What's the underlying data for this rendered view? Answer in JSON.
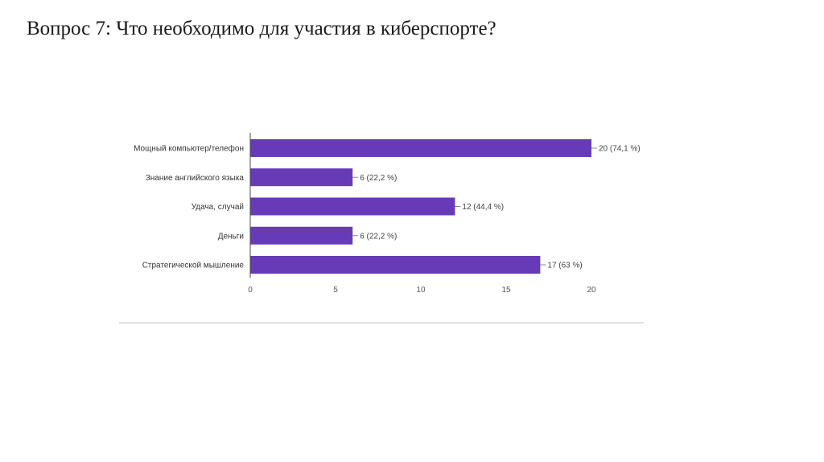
{
  "slide": {
    "title": "Вопрос 7: Что необходимо для участия в киберспорте?"
  },
  "chart_data": {
    "type": "bar",
    "orientation": "horizontal",
    "categories": [
      "Мощный компьютер/телефон",
      "Знание английского языка",
      "Удача, случай",
      "Деньги",
      "Стратегической мышление"
    ],
    "values": [
      20,
      6,
      12,
      6,
      17
    ],
    "data_labels": [
      "20 (74,1 %)",
      "6 (22,2 %)",
      "12 (44,4 %)",
      "6 (22,2 %)",
      "17 (63 %)"
    ],
    "x_ticks": [
      "0",
      "5",
      "10",
      "15",
      "20"
    ],
    "xlim": [
      0,
      20
    ],
    "bar_color": "#673ab7",
    "grid": false
  }
}
